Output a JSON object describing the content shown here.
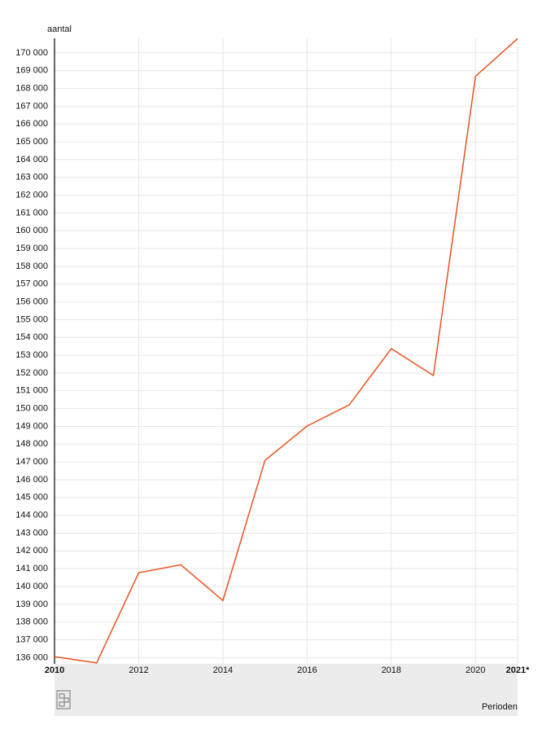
{
  "chart_data": {
    "type": "line",
    "y_label": "aantal",
    "x_label": "Perioden",
    "x": [
      2010,
      2011,
      2012,
      2013,
      2014,
      2015,
      2016,
      2017,
      2018,
      2019,
      2020,
      2021
    ],
    "series": [
      {
        "name": "aantal",
        "color": "#e8531f",
        "values": [
          136050,
          135700,
          140770,
          141220,
          139210,
          147090,
          149020,
          150210,
          153370,
          151860,
          168680,
          170800
        ]
      }
    ],
    "xlim": [
      2010,
      2021
    ],
    "xticks": [
      2010,
      2012,
      2014,
      2016,
      2018,
      2020,
      {
        "value": 2021,
        "label": "2021*"
      }
    ],
    "ylim": [
      135650,
      170820
    ],
    "yticks": [
      {
        "value": 136000,
        "label": "136 000"
      },
      {
        "value": 137000,
        "label": "137 000"
      },
      {
        "value": 138000,
        "label": "138 000"
      },
      {
        "value": 139000,
        "label": "139 000"
      },
      {
        "value": 140000,
        "label": "140 000"
      },
      {
        "value": 141000,
        "label": "141 000"
      },
      {
        "value": 142000,
        "label": "142 000"
      },
      {
        "value": 143000,
        "label": "143 000"
      },
      {
        "value": 144000,
        "label": "144 000"
      },
      {
        "value": 145000,
        "label": "145 000"
      },
      {
        "value": 146000,
        "label": "146 000"
      },
      {
        "value": 147000,
        "label": "147 000"
      },
      {
        "value": 148000,
        "label": "148 000"
      },
      {
        "value": 149000,
        "label": "149 000"
      },
      {
        "value": 150000,
        "label": "150 000"
      },
      {
        "value": 151000,
        "label": "151 000"
      },
      {
        "value": 152000,
        "label": "152 000"
      },
      {
        "value": 153000,
        "label": "153 000"
      },
      {
        "value": 154000,
        "label": "154 000"
      },
      {
        "value": 155000,
        "label": "155 000"
      },
      {
        "value": 156000,
        "label": "156 000"
      },
      {
        "value": 157000,
        "label": "157 000"
      },
      {
        "value": 158000,
        "label": "158 000"
      },
      {
        "value": 159000,
        "label": "159 000"
      },
      {
        "value": 160000,
        "label": "160 000"
      },
      {
        "value": 161000,
        "label": "161 000"
      },
      {
        "value": 162000,
        "label": "162 000"
      },
      {
        "value": 163000,
        "label": "163 000"
      },
      {
        "value": 164000,
        "label": "164 000"
      },
      {
        "value": 165000,
        "label": "165 000"
      },
      {
        "value": 166000,
        "label": "166 000"
      },
      {
        "value": 167000,
        "label": "167 000"
      },
      {
        "value": 168000,
        "label": "168 000"
      },
      {
        "value": 169000,
        "label": "169 000"
      },
      {
        "value": 170000,
        "label": "170 000"
      }
    ],
    "grid": true
  }
}
